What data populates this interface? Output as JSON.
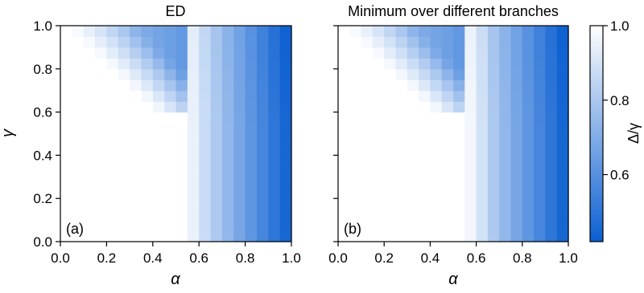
{
  "chart_data": [
    {
      "type": "heatmap",
      "title": "ED",
      "xlabel": "α",
      "ylabel": "γ",
      "panel_label": "(a)",
      "xlim": [
        0.0,
        1.0
      ],
      "ylim": [
        0.0,
        1.0
      ],
      "xticks": [
        "0.0",
        "0.2",
        "0.4",
        "0.6",
        "0.8",
        "1.0"
      ],
      "yticks": [
        "0.0",
        "0.2",
        "0.4",
        "0.6",
        "0.8",
        "1.0"
      ],
      "grid": false,
      "cell_size": 0.05,
      "value_rule": "Δ/γ: columns α ≥ 0.55 fade from 1.0 (white) at α≈0.55 to ≈0.42 at α=1.0; upper band near γ≈1 fades in from α≈0.05 along the staircase γ ≈ 1 − α"
    },
    {
      "type": "heatmap",
      "title": "Minimum over different branches",
      "xlabel": "α",
      "ylabel": "",
      "panel_label": "(b)",
      "xlim": [
        0.0,
        1.0
      ],
      "ylim": [
        0.0,
        1.0
      ],
      "xticks": [
        "0.0",
        "0.2",
        "0.4",
        "0.6",
        "0.8",
        "1.0"
      ],
      "yticks": [],
      "grid": false,
      "cell_size": 0.05
    }
  ],
  "colorbar": {
    "label": "Δ/γ",
    "ticks": [
      "1.0",
      "0.8",
      "0.6"
    ],
    "tick_values": [
      1.0,
      0.8,
      0.6
    ],
    "vmin": 0.42,
    "vmax": 1.0,
    "color_low": "#0b5fd1",
    "color_high": "#ffffff"
  }
}
